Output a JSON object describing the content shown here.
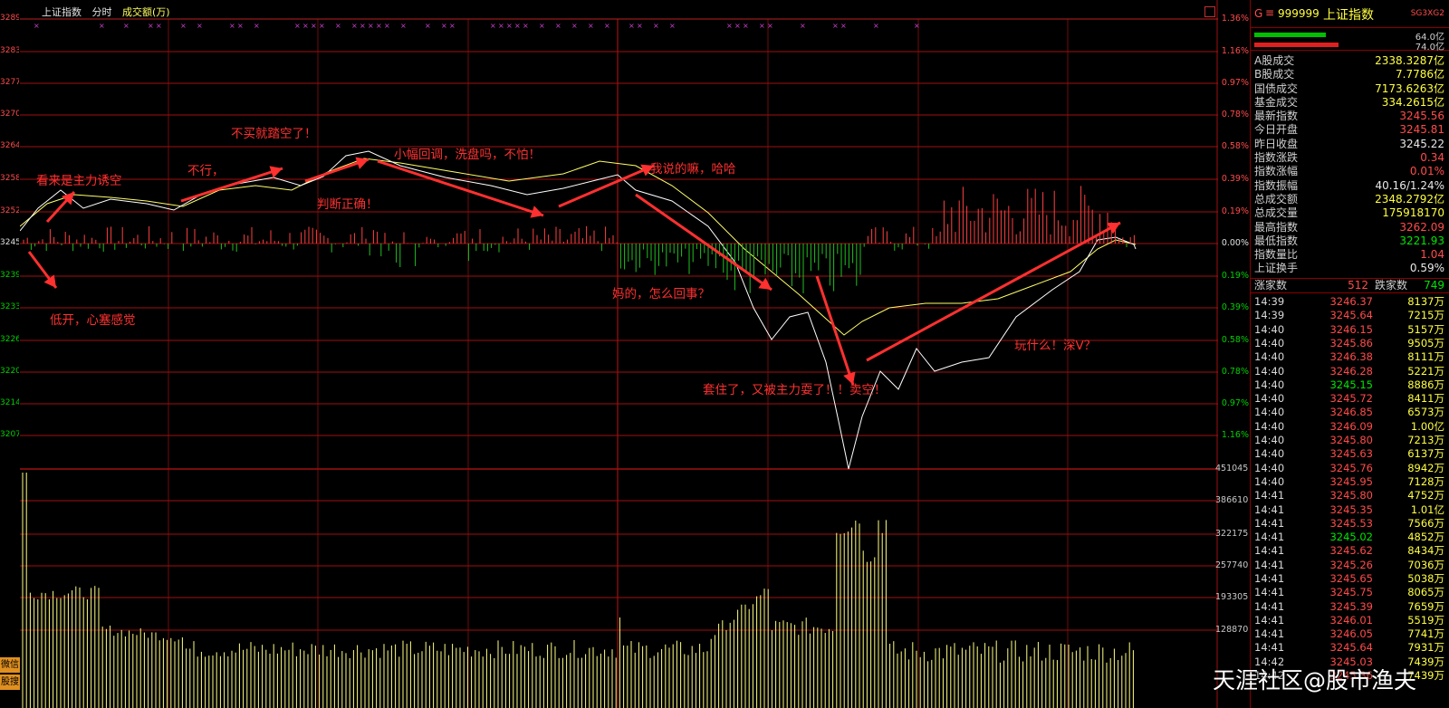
{
  "header": {
    "title": "上证指数",
    "mode": "分时",
    "volume_label": "成交额(万)",
    "corner_icon": "restore-icon"
  },
  "right_price_labels": [
    "1.36%",
    "1.16%",
    "0.97%",
    "0.78%",
    "0.58%",
    "0.39%",
    "0.19%",
    "0.00%",
    "0.19%",
    "0.39%",
    "0.58%",
    "0.78%",
    "0.97%",
    "1.16%"
  ],
  "left_price_labels": [
    "3289",
    "3283",
    "3277",
    "3270",
    "3264",
    "3258",
    "3252",
    "3245",
    "3239",
    "3233",
    "3226",
    "3220",
    "3214",
    "3207"
  ],
  "volume_labels": [
    "451045",
    "386610",
    "322175",
    "257740",
    "193305",
    "128870"
  ],
  "annotations": {
    "a1": "看来是主力诱空",
    "a2": "低开，心塞感觉",
    "a3": "不行，",
    "a4": "不买就踏空了！",
    "a5": "判断正确！",
    "a6": "小幅回调，洗盘吗，不怕！",
    "a7": "我说的嘛，哈哈",
    "a8": "妈的，怎么回事？",
    "a9": "套住了，又被主力耍了！！卖空！",
    "a10": "玩什么！深V？"
  },
  "side": {
    "code_prefix": "G",
    "menu_icon": "≡",
    "code": "999999",
    "name": "上证指数",
    "tag": "SG3XG2",
    "bar1_value": "64.0亿",
    "bar2_value": "74.0亿",
    "bar1_fraction": 0.46,
    "bar2_fraction": 0.54,
    "stats": [
      {
        "k": "A股成交",
        "v": "2338.3287亿",
        "c": "yellow"
      },
      {
        "k": "B股成交",
        "v": "7.7786亿",
        "c": "yellow"
      },
      {
        "k": "国债成交",
        "v": "7173.6263亿",
        "c": "yellow"
      },
      {
        "k": "基金成交",
        "v": "334.2615亿",
        "c": "yellow"
      },
      {
        "k": "最新指数",
        "v": "3245.56",
        "c": "red"
      },
      {
        "k": "今日开盘",
        "v": "3245.81",
        "c": "red"
      },
      {
        "k": "昨日收盘",
        "v": "3245.22",
        "c": "white"
      },
      {
        "k": "指数涨跌",
        "v": "0.34",
        "c": "red"
      },
      {
        "k": "指数涨幅",
        "v": "0.01%",
        "c": "red"
      },
      {
        "k": "指数振幅",
        "v": "40.16/1.24%",
        "c": "white"
      },
      {
        "k": "总成交额",
        "v": "2348.2792亿",
        "c": "yellow"
      },
      {
        "k": "总成交量",
        "v": "175918170",
        "c": "yellow"
      },
      {
        "k": "最高指数",
        "v": "3262.09",
        "c": "red"
      },
      {
        "k": "最低指数",
        "v": "3221.93",
        "c": "green"
      },
      {
        "k": "指数量比",
        "v": "1.04",
        "c": "red"
      },
      {
        "k": "上证换手",
        "v": "0.59%",
        "c": "white"
      }
    ],
    "up_label": "涨家数",
    "up_count": "512",
    "down_label": "跌家数",
    "down_count": "749",
    "ticks": [
      {
        "t": "14:39",
        "p": "3246.37",
        "c": "red",
        "v": "8137万"
      },
      {
        "t": "14:39",
        "p": "3245.64",
        "c": "red",
        "v": "7215万"
      },
      {
        "t": "14:40",
        "p": "3246.15",
        "c": "red",
        "v": "5157万"
      },
      {
        "t": "14:40",
        "p": "3245.86",
        "c": "red",
        "v": "9505万"
      },
      {
        "t": "14:40",
        "p": "3246.38",
        "c": "red",
        "v": "8111万"
      },
      {
        "t": "14:40",
        "p": "3246.28",
        "c": "red",
        "v": "5221万"
      },
      {
        "t": "14:40",
        "p": "3245.15",
        "c": "green",
        "v": "8886万"
      },
      {
        "t": "14:40",
        "p": "3245.72",
        "c": "red",
        "v": "8411万"
      },
      {
        "t": "14:40",
        "p": "3246.85",
        "c": "red",
        "v": "6573万"
      },
      {
        "t": "14:40",
        "p": "3246.09",
        "c": "red",
        "v": "1.00亿"
      },
      {
        "t": "14:40",
        "p": "3245.80",
        "c": "red",
        "v": "7213万"
      },
      {
        "t": "14:40",
        "p": "3245.63",
        "c": "red",
        "v": "6137万"
      },
      {
        "t": "14:40",
        "p": "3245.76",
        "c": "red",
        "v": "8942万"
      },
      {
        "t": "14:40",
        "p": "3245.95",
        "c": "red",
        "v": "7128万"
      },
      {
        "t": "14:41",
        "p": "3245.80",
        "c": "red",
        "v": "4752万"
      },
      {
        "t": "14:41",
        "p": "3245.35",
        "c": "red",
        "v": "1.01亿"
      },
      {
        "t": "14:41",
        "p": "3245.53",
        "c": "red",
        "v": "7566万"
      },
      {
        "t": "14:41",
        "p": "3245.02",
        "c": "green",
        "v": "4852万"
      },
      {
        "t": "14:41",
        "p": "3245.62",
        "c": "red",
        "v": "8434万"
      },
      {
        "t": "14:41",
        "p": "3245.26",
        "c": "red",
        "v": "7036万"
      },
      {
        "t": "14:41",
        "p": "3245.65",
        "c": "red",
        "v": "5038万"
      },
      {
        "t": "14:41",
        "p": "3245.75",
        "c": "red",
        "v": "8065万"
      },
      {
        "t": "14:41",
        "p": "3245.39",
        "c": "red",
        "v": "7659万"
      },
      {
        "t": "14:41",
        "p": "3246.01",
        "c": "red",
        "v": "5519万"
      },
      {
        "t": "14:41",
        "p": "3246.05",
        "c": "red",
        "v": "7741万"
      },
      {
        "t": "14:41",
        "p": "3245.64",
        "c": "red",
        "v": "7931万"
      },
      {
        "t": "14:42",
        "p": "3245.03",
        "c": "red",
        "v": "7439万"
      },
      {
        "t": "14:42",
        "p": "3245.36",
        "c": "red",
        "v": "7439万"
      }
    ]
  },
  "left_buttons": [
    "微信",
    "股搜"
  ],
  "watermark": "天涯社区@股市渔夫",
  "colors": {
    "grid": "#a01010",
    "price_line": "#ffffff",
    "avg_line": "#ffff66",
    "up_bar": "#ff4040",
    "down_bar": "#20c020",
    "volume_bar": "#ffff80",
    "annotation": "#ff3030"
  }
}
